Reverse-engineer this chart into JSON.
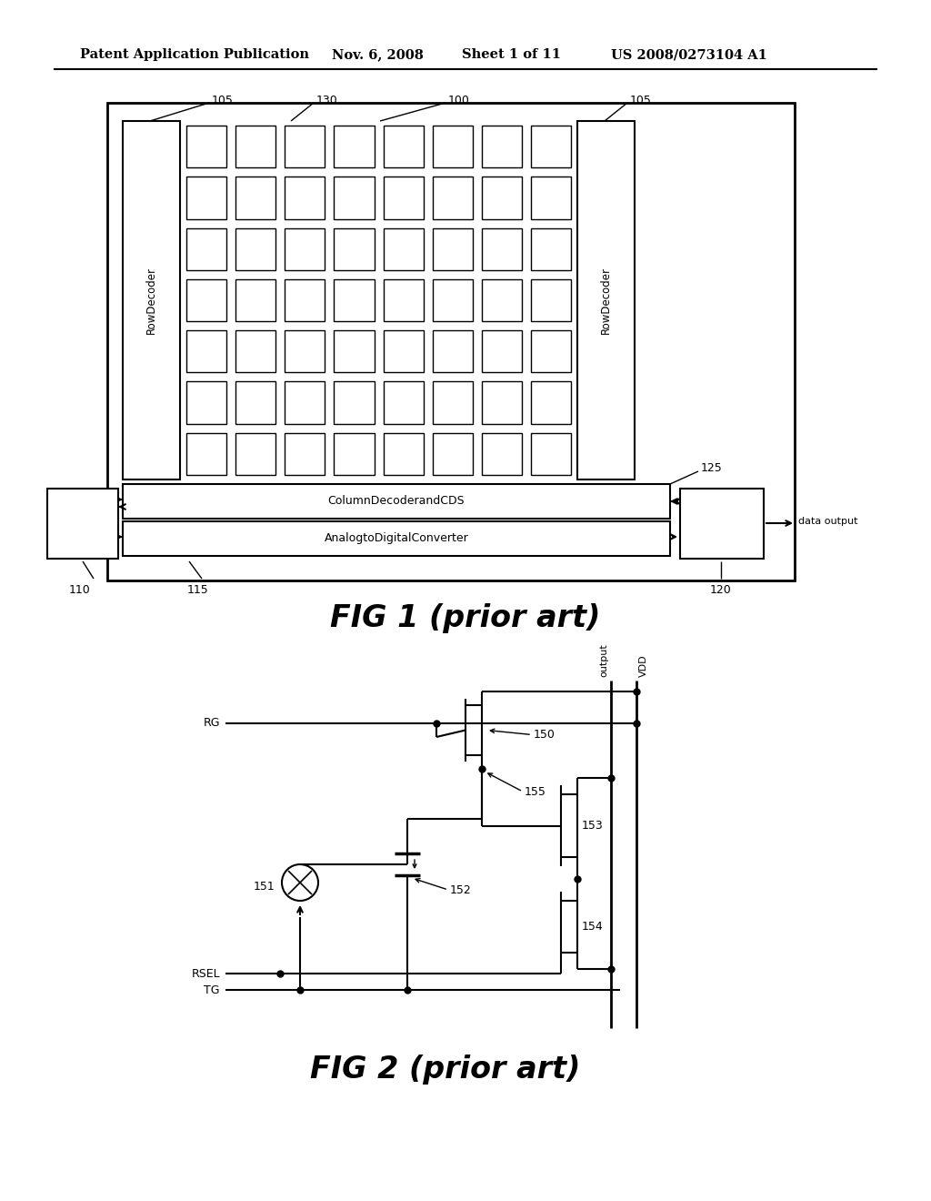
{
  "bg_color": "#ffffff",
  "header_text": "Patent Application Publication",
  "header_date": "Nov. 6, 2008",
  "header_sheet": "Sheet 1 of 11",
  "header_patent": "US 2008/0273104 A1",
  "fig1_caption": "FIG 1 (prior art)",
  "fig2_caption": "FIG 2 (prior art)",
  "line_color": "#000000"
}
